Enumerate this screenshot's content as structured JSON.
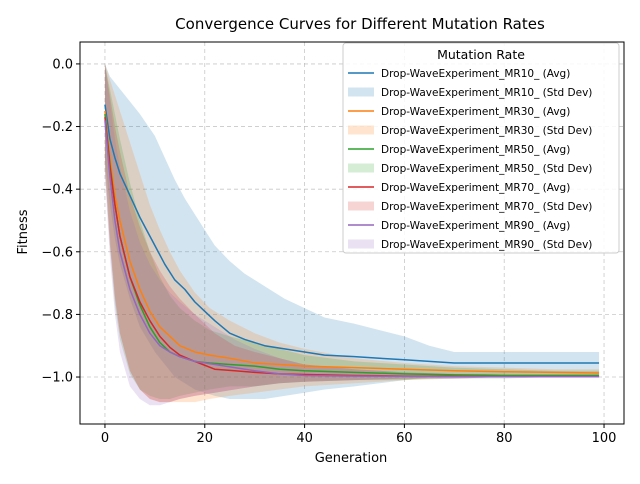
{
  "chart_data": {
    "type": "line",
    "title": "Convergence Curves for Different Mutation Rates",
    "xlabel": "Generation",
    "ylabel": "Fitness",
    "xlim": [
      -5,
      104
    ],
    "ylim": [
      -1.15,
      0.07
    ],
    "xticks": [
      0,
      20,
      40,
      60,
      80,
      100
    ],
    "yticks": [
      0.0,
      -0.2,
      -0.4,
      -0.6,
      -0.8,
      -1.0
    ],
    "xtick_labels": [
      "0",
      "20",
      "40",
      "60",
      "80",
      "100"
    ],
    "ytick_labels": [
      "0.0",
      "−0.2",
      "−0.4",
      "−0.6",
      "−0.8",
      "−1.0"
    ],
    "grid": true,
    "legend": {
      "title": "Mutation Rate",
      "position": "upper right"
    },
    "series": [
      {
        "name": "Drop-WaveExperiment_MR10_",
        "avg_label": "Drop-WaveExperiment_MR10_ (Avg)",
        "std_label": "Drop-WaveExperiment_MR10_ (Std Dev)",
        "color": "#1f77b4",
        "x": [
          0,
          1,
          2,
          3,
          5,
          7,
          10,
          12,
          14,
          16,
          18,
          20,
          22,
          25,
          28,
          32,
          36,
          40,
          44,
          50,
          55,
          60,
          65,
          70,
          80,
          90,
          99
        ],
        "avg": [
          -0.13,
          -0.24,
          -0.3,
          -0.35,
          -0.42,
          -0.49,
          -0.58,
          -0.64,
          -0.69,
          -0.72,
          -0.76,
          -0.79,
          -0.82,
          -0.86,
          -0.88,
          -0.9,
          -0.91,
          -0.92,
          -0.93,
          -0.935,
          -0.94,
          -0.945,
          -0.95,
          -0.955,
          -0.955,
          -0.955,
          -0.955
        ],
        "upper": [
          0.0,
          -0.04,
          -0.06,
          -0.08,
          -0.12,
          -0.16,
          -0.23,
          -0.3,
          -0.37,
          -0.43,
          -0.48,
          -0.53,
          -0.58,
          -0.63,
          -0.67,
          -0.71,
          -0.75,
          -0.78,
          -0.81,
          -0.83,
          -0.85,
          -0.87,
          -0.9,
          -0.92,
          -0.92,
          -0.92,
          -0.92
        ],
        "lower": [
          -0.3,
          -0.45,
          -0.56,
          -0.64,
          -0.75,
          -0.84,
          -0.92,
          -0.96,
          -1.0,
          -1.02,
          -1.04,
          -1.05,
          -1.06,
          -1.07,
          -1.07,
          -1.07,
          -1.06,
          -1.05,
          -1.04,
          -1.03,
          -1.02,
          -1.01,
          -1.0,
          -0.995,
          -0.99,
          -0.99,
          -0.99
        ]
      },
      {
        "name": "Drop-WaveExperiment_MR30_",
        "avg_label": "Drop-WaveExperiment_MR30_ (Avg)",
        "std_label": "Drop-WaveExperiment_MR30_ (Std Dev)",
        "color": "#ff7f0e",
        "x": [
          0,
          1,
          2,
          3,
          5,
          7,
          9,
          11,
          13,
          15,
          18,
          21,
          25,
          30,
          35,
          40,
          50,
          60,
          70,
          80,
          90,
          99
        ],
        "avg": [
          -0.15,
          -0.3,
          -0.42,
          -0.5,
          -0.63,
          -0.72,
          -0.79,
          -0.84,
          -0.87,
          -0.9,
          -0.92,
          -0.93,
          -0.94,
          -0.955,
          -0.96,
          -0.965,
          -0.97,
          -0.975,
          -0.98,
          -0.983,
          -0.985,
          -0.987
        ],
        "upper": [
          0.0,
          -0.05,
          -0.1,
          -0.15,
          -0.25,
          -0.35,
          -0.45,
          -0.53,
          -0.6,
          -0.66,
          -0.73,
          -0.78,
          -0.82,
          -0.86,
          -0.89,
          -0.91,
          -0.94,
          -0.955,
          -0.965,
          -0.97,
          -0.975,
          -0.975
        ],
        "lower": [
          -0.3,
          -0.55,
          -0.74,
          -0.86,
          -0.98,
          -1.04,
          -1.07,
          -1.08,
          -1.08,
          -1.08,
          -1.08,
          -1.07,
          -1.06,
          -1.05,
          -1.04,
          -1.03,
          -1.02,
          -1.01,
          -1.0,
          -1.0,
          -1.0,
          -1.0
        ]
      },
      {
        "name": "Drop-WaveExperiment_MR50_",
        "avg_label": "Drop-WaveExperiment_MR50_ (Avg)",
        "std_label": "Drop-WaveExperiment_MR50_ (Std Dev)",
        "color": "#2ca02c",
        "x": [
          0,
          1,
          2,
          3,
          5,
          7,
          9,
          11,
          13,
          15,
          18,
          21,
          25,
          30,
          35,
          40,
          50,
          60,
          70,
          80,
          90,
          99
        ],
        "avg": [
          -0.16,
          -0.32,
          -0.45,
          -0.55,
          -0.68,
          -0.77,
          -0.84,
          -0.89,
          -0.92,
          -0.935,
          -0.95,
          -0.955,
          -0.96,
          -0.965,
          -0.975,
          -0.98,
          -0.985,
          -0.99,
          -0.993,
          -0.995,
          -0.995,
          -0.995
        ],
        "upper": [
          0.0,
          -0.08,
          -0.16,
          -0.24,
          -0.38,
          -0.5,
          -0.6,
          -0.68,
          -0.74,
          -0.78,
          -0.82,
          -0.85,
          -0.87,
          -0.89,
          -0.91,
          -0.93,
          -0.95,
          -0.96,
          -0.97,
          -0.975,
          -0.98,
          -0.98
        ],
        "lower": [
          -0.33,
          -0.58,
          -0.77,
          -0.88,
          -0.99,
          -1.04,
          -1.06,
          -1.07,
          -1.07,
          -1.06,
          -1.05,
          -1.04,
          -1.03,
          -1.03,
          -1.02,
          -1.015,
          -1.01,
          -1.01,
          -1.005,
          -1.005,
          -1.0,
          -1.0
        ]
      },
      {
        "name": "Drop-WaveExperiment_MR70_",
        "avg_label": "Drop-WaveExperiment_MR70_ (Avg)",
        "std_label": "Drop-WaveExperiment_MR70_ (Std Dev)",
        "color": "#d62728",
        "x": [
          0,
          1,
          2,
          3,
          5,
          7,
          9,
          11,
          13,
          15,
          18,
          22,
          26,
          30,
          35,
          40,
          50,
          60,
          70,
          80,
          90,
          99
        ],
        "avg": [
          -0.17,
          -0.33,
          -0.45,
          -0.55,
          -0.68,
          -0.76,
          -0.82,
          -0.87,
          -0.905,
          -0.93,
          -0.95,
          -0.975,
          -0.98,
          -0.985,
          -0.99,
          -0.992,
          -0.995,
          -0.997,
          -0.998,
          -0.999,
          -0.999,
          -0.999
        ],
        "upper": [
          0.0,
          -0.1,
          -0.2,
          -0.28,
          -0.42,
          -0.52,
          -0.6,
          -0.66,
          -0.71,
          -0.75,
          -0.8,
          -0.86,
          -0.9,
          -0.92,
          -0.94,
          -0.96,
          -0.975,
          -0.985,
          -0.99,
          -0.99,
          -0.99,
          -0.99
        ],
        "lower": [
          -0.34,
          -0.58,
          -0.75,
          -0.86,
          -0.98,
          -1.04,
          -1.07,
          -1.08,
          -1.08,
          -1.07,
          -1.06,
          -1.05,
          -1.04,
          -1.03,
          -1.02,
          -1.015,
          -1.01,
          -1.005,
          -1.005,
          -1.0,
          -1.0,
          -1.0
        ]
      },
      {
        "name": "Drop-WaveExperiment_MR90_",
        "avg_label": "Drop-WaveExperiment_MR90_ (Avg)",
        "std_label": "Drop-WaveExperiment_MR90_ (Std Dev)",
        "color": "#9467bd",
        "x": [
          0,
          1,
          2,
          3,
          5,
          7,
          9,
          11,
          13,
          15,
          18,
          22,
          26,
          30,
          35,
          40,
          50,
          60,
          70,
          80,
          90,
          99
        ],
        "avg": [
          -0.18,
          -0.36,
          -0.5,
          -0.6,
          -0.72,
          -0.8,
          -0.86,
          -0.9,
          -0.92,
          -0.935,
          -0.95,
          -0.96,
          -0.97,
          -0.98,
          -0.99,
          -0.995,
          -0.997,
          -0.998,
          -0.999,
          -0.999,
          -0.999,
          -0.999
        ],
        "upper": [
          0.0,
          -0.12,
          -0.24,
          -0.33,
          -0.47,
          -0.57,
          -0.64,
          -0.69,
          -0.73,
          -0.76,
          -0.8,
          -0.84,
          -0.88,
          -0.91,
          -0.94,
          -0.96,
          -0.975,
          -0.985,
          -0.99,
          -0.99,
          -0.99,
          -0.99
        ],
        "lower": [
          -0.36,
          -0.62,
          -0.8,
          -0.92,
          -1.03,
          -1.07,
          -1.09,
          -1.09,
          -1.08,
          -1.07,
          -1.06,
          -1.05,
          -1.04,
          -1.03,
          -1.02,
          -1.015,
          -1.01,
          -1.005,
          -1.005,
          -1.0,
          -1.0,
          -1.0
        ]
      }
    ]
  }
}
